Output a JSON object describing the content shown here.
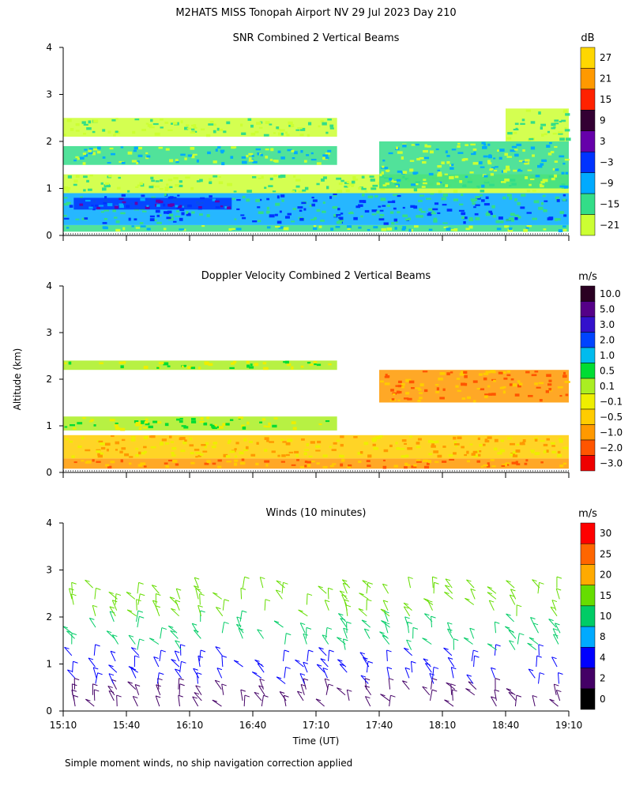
{
  "figure": {
    "title": "M2HATS MISS Tonopah Airport NV  29 Jul 2023 Day 210",
    "ylabel": "Altitude (km)",
    "xlabel": "Time (UT)",
    "footnote": "Simple moment winds, no ship navigation correction applied",
    "x_ticks": [
      "15:10",
      "15:40",
      "16:10",
      "16:40",
      "17:10",
      "17:40",
      "18:10",
      "18:40",
      "19:10"
    ],
    "y_ticks": [
      "0",
      "1",
      "2",
      "3",
      "4"
    ]
  },
  "chart_data": [
    {
      "type": "heatmap",
      "title": "SNR Combined 2 Vertical Beams",
      "colorbar_unit": "dB",
      "colorbar_ticks": [
        "27",
        "21",
        "15",
        "9",
        "3",
        "−3",
        "−9",
        "−15",
        "−21"
      ],
      "colorbar_colors": [
        "#ffd700",
        "#ff9900",
        "#ff2200",
        "#330033",
        "#6600aa",
        "#0033ff",
        "#00aaff",
        "#33dd88",
        "#ccff33"
      ],
      "xlim": [
        "15:10",
        "19:10"
      ],
      "ylim": [
        0,
        4
      ],
      "layers": [
        {
          "t0": 0.0,
          "t1": 240.0,
          "z0": 0.08,
          "z1": 0.22,
          "label": "-15"
        },
        {
          "t0": 0.0,
          "t1": 240.0,
          "z0": 0.22,
          "z1": 0.9,
          "label": "-9"
        },
        {
          "t0": 5.0,
          "t1": 80.0,
          "z0": 0.55,
          "z1": 0.8,
          "label": "-3"
        },
        {
          "t0": 0.0,
          "t1": 240.0,
          "z0": 0.9,
          "z1": 1.3,
          "label": "-21"
        },
        {
          "t0": 0.0,
          "t1": 130.0,
          "z0": 1.5,
          "z1": 1.9,
          "label": "-15"
        },
        {
          "t0": 0.0,
          "t1": 130.0,
          "z0": 2.1,
          "z1": 2.5,
          "label": "-21"
        },
        {
          "t0": 150.0,
          "t1": 240.0,
          "z0": 1.0,
          "z1": 2.0,
          "label": "-15"
        },
        {
          "t0": 210.0,
          "t1": 240.0,
          "z0": 2.0,
          "z1": 2.7,
          "label": "-21"
        }
      ]
    },
    {
      "type": "heatmap",
      "title": "Doppler Velocity Combined 2 Vertical Beams",
      "colorbar_unit": "m/s",
      "colorbar_ticks": [
        "10.0",
        "5.0",
        "3.0",
        "2.0",
        "1.0",
        "0.5",
        "0.1",
        "−0.1",
        "−0.5",
        "−1.0",
        "−2.0",
        "−3.0"
      ],
      "colorbar_colors": [
        "#2a0022",
        "#550088",
        "#3311cc",
        "#0044ff",
        "#00bbee",
        "#00dd33",
        "#aaee22",
        "#eeee00",
        "#ffcc00",
        "#ff9900",
        "#ff5500",
        "#ee0000"
      ],
      "xlim": [
        "15:10",
        "19:10"
      ],
      "ylim": [
        0,
        4
      ],
      "layers": [
        {
          "t0": 0.0,
          "t1": 240.0,
          "z0": 0.08,
          "z1": 0.3,
          "label": "-1.0"
        },
        {
          "t0": 0.0,
          "t1": 240.0,
          "z0": 0.3,
          "z1": 0.8,
          "label": "-0.5"
        },
        {
          "t0": 0.0,
          "t1": 130.0,
          "z0": 0.9,
          "z1": 1.2,
          "label": "0.1"
        },
        {
          "t0": 0.0,
          "t1": 130.0,
          "z0": 2.2,
          "z1": 2.4,
          "label": "0.1"
        },
        {
          "t0": 150.0,
          "t1": 240.0,
          "z0": 1.5,
          "z1": 2.2,
          "label": "-1.0"
        }
      ]
    },
    {
      "type": "barbs",
      "title": "Winds (10 minutes)",
      "colorbar_unit": "m/s",
      "colorbar_ticks": [
        "30",
        "25",
        "20",
        "15",
        "10",
        "8",
        "4",
        "2",
        "0"
      ],
      "colorbar_colors": [
        "#ff0000",
        "#ff6600",
        "#ffaa00",
        "#66dd00",
        "#00cc66",
        "#00aaff",
        "#0000ff",
        "#440066",
        "#000000"
      ],
      "xlim": [
        "15:10",
        "19:10"
      ],
      "ylim": [
        0,
        4
      ],
      "profile_times": [
        5,
        15,
        25,
        35,
        45,
        55,
        65,
        75,
        85,
        95,
        105,
        115,
        125,
        135,
        145,
        155,
        165,
        175,
        185,
        195,
        205,
        215,
        225,
        235
      ]
    }
  ]
}
